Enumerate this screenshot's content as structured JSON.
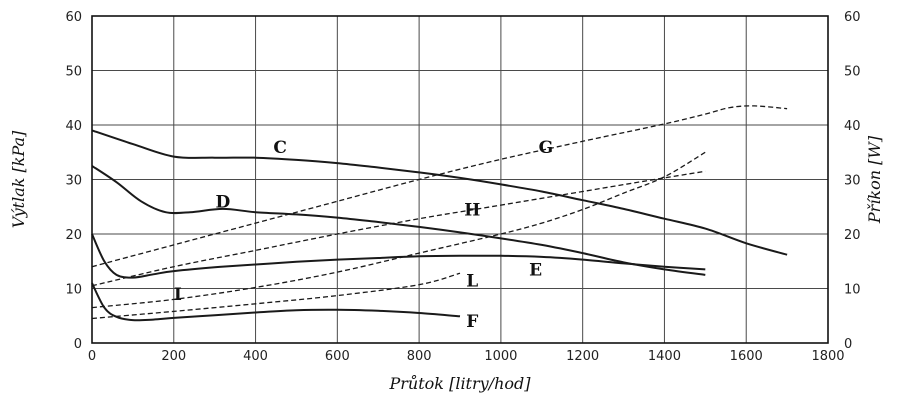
{
  "chart_data": {
    "type": "line",
    "xlabel": "Průtok [litry/hod]",
    "ylabel": "Výtlak [kPa]",
    "y2label": "Příkon [W]",
    "xlim": [
      0,
      1800
    ],
    "ylim": [
      0,
      60
    ],
    "y2lim": [
      0,
      60
    ],
    "xticks": [
      "0",
      "200",
      "400",
      "600",
      "800",
      "1000",
      "1200",
      "1400",
      "1600",
      "1800"
    ],
    "yticks": [
      "0",
      "10",
      "20",
      "30",
      "40",
      "50",
      "60"
    ],
    "y2ticks": [
      "0",
      "10",
      "20",
      "30",
      "40",
      "50",
      "60"
    ],
    "grid": true,
    "series": [
      {
        "name": "C",
        "style": "solid",
        "axis": "left",
        "x": [
          0,
          100,
          200,
          300,
          400,
          500,
          600,
          700,
          800,
          900,
          1000,
          1100,
          1200,
          1300,
          1400,
          1500,
          1600,
          1700
        ],
        "y": [
          39,
          36.5,
          34.2,
          34,
          34,
          33.6,
          33,
          32.2,
          31.3,
          30.3,
          29.1,
          27.8,
          26.2,
          24.6,
          22.8,
          21,
          18.3,
          16.2
        ],
        "label_x": 460,
        "label_y": 36
      },
      {
        "name": "D",
        "style": "solid",
        "axis": "left",
        "x": [
          0,
          60,
          120,
          180,
          240,
          320,
          400,
          500,
          600,
          700,
          800,
          900,
          1000,
          1100,
          1200,
          1300,
          1400,
          1500
        ],
        "y": [
          32.5,
          29.5,
          26,
          24,
          24,
          24.6,
          24,
          23.6,
          23,
          22.2,
          21.3,
          20.3,
          19.2,
          18,
          16.5,
          14.8,
          13.5,
          12.5
        ],
        "label_x": 320,
        "label_y": 26
      },
      {
        "name": "E",
        "style": "solid",
        "axis": "left",
        "x": [
          0,
          30,
          60,
          100,
          150,
          200,
          300,
          400,
          500,
          600,
          700,
          800,
          900,
          1000,
          1100,
          1200,
          1300,
          1400,
          1500
        ],
        "y": [
          20,
          15,
          12.5,
          12,
          12.6,
          13.2,
          13.9,
          14.4,
          14.9,
          15.3,
          15.6,
          15.9,
          16,
          16,
          15.8,
          15.3,
          14.6,
          14,
          13.5
        ],
        "label_x": 1085,
        "label_y": 13.5
      },
      {
        "name": "F",
        "style": "solid",
        "axis": "left",
        "x": [
          0,
          30,
          60,
          100,
          150,
          200,
          300,
          400,
          500,
          600,
          700,
          800,
          900
        ],
        "y": [
          11,
          6.5,
          4.8,
          4.2,
          4.3,
          4.6,
          5.1,
          5.6,
          6,
          6.1,
          5.9,
          5.5,
          4.9
        ],
        "label_x": 930,
        "label_y": 4
      },
      {
        "name": "G",
        "style": "dashed",
        "axis": "right",
        "x": [
          0,
          200,
          400,
          600,
          800,
          1000,
          1200,
          1400,
          1500,
          1560,
          1620,
          1700
        ],
        "y": [
          14,
          18,
          22,
          26,
          30,
          33.7,
          37,
          40.2,
          42,
          43.2,
          43.5,
          43
        ],
        "label_x": 1110,
        "label_y": 36
      },
      {
        "name": "H",
        "style": "dashed",
        "axis": "right",
        "x": [
          0,
          200,
          400,
          600,
          800,
          1000,
          1200,
          1400,
          1500
        ],
        "y": [
          10.5,
          14,
          17,
          20,
          22.8,
          25.3,
          27.8,
          30.3,
          31.5
        ],
        "label_x": 930,
        "label_y": 24.5
      },
      {
        "name": "I",
        "style": "dashed",
        "axis": "right",
        "x": [
          0,
          200,
          400,
          600,
          800,
          1000,
          1100,
          1200,
          1300,
          1400,
          1500
        ],
        "y": [
          6.5,
          8,
          10.2,
          13,
          16.5,
          20,
          22,
          24.5,
          27.5,
          30.5,
          35
        ],
        "label_x": 210,
        "label_y": 9
      },
      {
        "name": "L",
        "style": "dashed",
        "axis": "right",
        "x": [
          0,
          200,
          400,
          600,
          800,
          900
        ],
        "y": [
          4.5,
          5.8,
          7.2,
          8.7,
          10.7,
          12.8
        ],
        "label_x": 930,
        "label_y": 11.5
      }
    ]
  }
}
